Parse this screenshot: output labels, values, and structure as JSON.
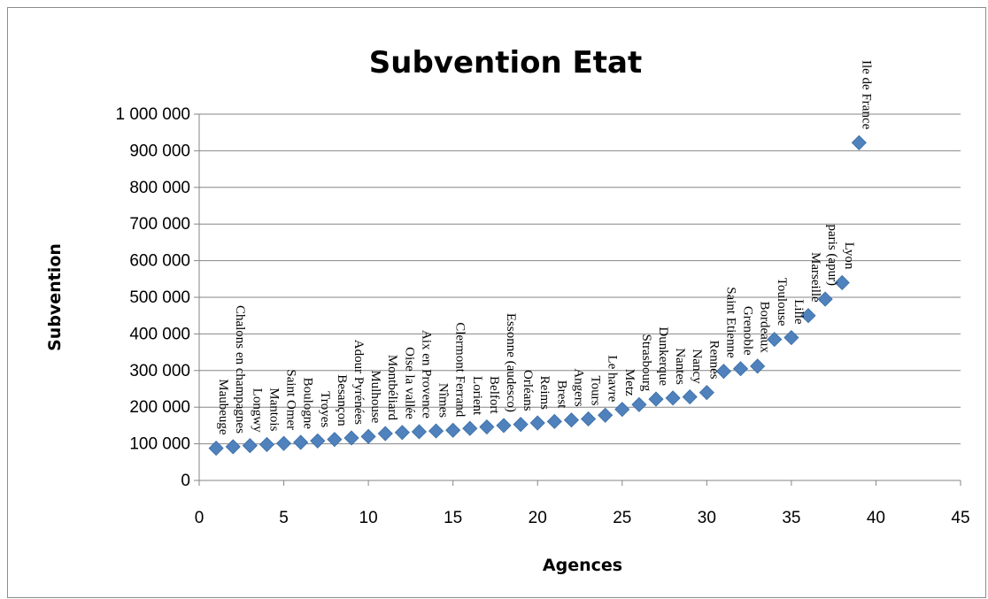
{
  "chart_data": {
    "type": "scatter",
    "title": "Subvention Etat",
    "xlabel": "Agences",
    "ylabel": "Subvention",
    "xlim": [
      0,
      45
    ],
    "ylim": [
      0,
      1000000
    ],
    "x_ticks": [
      0,
      5,
      10,
      15,
      20,
      25,
      30,
      35,
      40,
      45
    ],
    "y_ticks": [
      0,
      100000,
      200000,
      300000,
      400000,
      500000,
      600000,
      700000,
      800000,
      900000,
      1000000
    ],
    "grid": "horizontal",
    "marker": "diamond",
    "color": "#4f81bd",
    "points": [
      {
        "x": 1,
        "y": 88000,
        "label": "Maubeuge"
      },
      {
        "x": 2,
        "y": 92000,
        "label": "Chalons en champagnes"
      },
      {
        "x": 3,
        "y": 95000,
        "label": "Longwy"
      },
      {
        "x": 4,
        "y": 98000,
        "label": "Mantois"
      },
      {
        "x": 5,
        "y": 101000,
        "label": "Saint Omer"
      },
      {
        "x": 6,
        "y": 104000,
        "label": "Boulogne"
      },
      {
        "x": 7,
        "y": 108000,
        "label": "Troyes"
      },
      {
        "x": 8,
        "y": 112000,
        "label": "Besançon"
      },
      {
        "x": 9,
        "y": 116000,
        "label": "Adour Pyrénées"
      },
      {
        "x": 10,
        "y": 120000,
        "label": "Mulhouse"
      },
      {
        "x": 11,
        "y": 128000,
        "label": "Montbéliard"
      },
      {
        "x": 12,
        "y": 131000,
        "label": "Oise la vallée"
      },
      {
        "x": 13,
        "y": 133000,
        "label": "Aix en Provence"
      },
      {
        "x": 14,
        "y": 135000,
        "label": "Nîmes"
      },
      {
        "x": 15,
        "y": 137000,
        "label": "Clermont Ferrand"
      },
      {
        "x": 16,
        "y": 142000,
        "label": "Lorient"
      },
      {
        "x": 17,
        "y": 146000,
        "label": "Belfort"
      },
      {
        "x": 18,
        "y": 150000,
        "label": "Essonne (audesco)"
      },
      {
        "x": 19,
        "y": 153000,
        "label": "Orléans"
      },
      {
        "x": 20,
        "y": 157000,
        "label": "Reims"
      },
      {
        "x": 21,
        "y": 161000,
        "label": "Brest"
      },
      {
        "x": 22,
        "y": 165000,
        "label": "Angers"
      },
      {
        "x": 23,
        "y": 168000,
        "label": "Tours"
      },
      {
        "x": 24,
        "y": 178000,
        "label": "Le havre"
      },
      {
        "x": 25,
        "y": 194000,
        "label": "Metz"
      },
      {
        "x": 26,
        "y": 207000,
        "label": "Strasbourg"
      },
      {
        "x": 27,
        "y": 222000,
        "label": "Dunkerque"
      },
      {
        "x": 28,
        "y": 225000,
        "label": "Nantes"
      },
      {
        "x": 29,
        "y": 228000,
        "label": "Nancy"
      },
      {
        "x": 30,
        "y": 240000,
        "label": "Rennes"
      },
      {
        "x": 31,
        "y": 298000,
        "label": "Saint Etienne"
      },
      {
        "x": 32,
        "y": 305000,
        "label": "Grenoble"
      },
      {
        "x": 33,
        "y": 312000,
        "label": "Bordeaux"
      },
      {
        "x": 34,
        "y": 385000,
        "label": "Toulouse"
      },
      {
        "x": 35,
        "y": 390000,
        "label": "Lille"
      },
      {
        "x": 36,
        "y": 450000,
        "label": "Marseille"
      },
      {
        "x": 37,
        "y": 495000,
        "label": "paris (apur)"
      },
      {
        "x": 38,
        "y": 540000,
        "label": "Lyon"
      },
      {
        "x": 39,
        "y": 922000,
        "label": "Ile de France"
      }
    ]
  }
}
